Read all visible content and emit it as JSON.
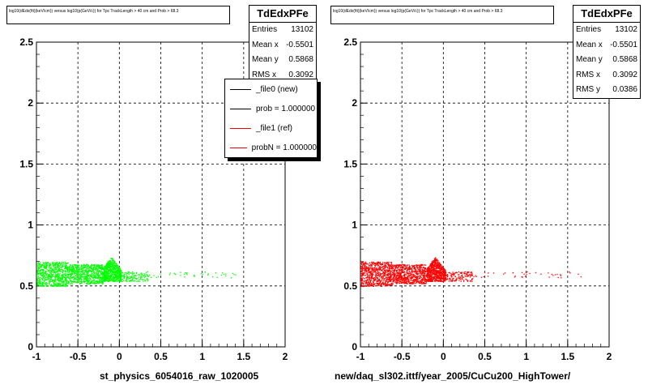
{
  "colors": {
    "left_series": "#00ff00",
    "right_series": "#ff0000",
    "legend_new": "#000000",
    "legend_ref": "#ff0000"
  },
  "chart_data": [
    {
      "type": "scatter",
      "title": "log10(dEdx(fit)(keV/cm)) versus log10(p(GeV/c)) for Tpc TrackLength > 40 cm and Prob > 68.3",
      "xlabel": "st_physics_6054016_raw_1020005",
      "ylabel": "",
      "xlim": [
        -1,
        2
      ],
      "ylim": [
        0,
        2.5
      ],
      "x_ticks": [
        "-1",
        "-0.5",
        "0",
        "0.5",
        "1",
        "1.5",
        "2"
      ],
      "y_ticks": [
        "0",
        "0.5",
        "1",
        "1.5",
        "2",
        "2.5"
      ],
      "grid": true,
      "color": "#00ff00",
      "stats": {
        "name": "TdEdxPFe",
        "rows": [
          {
            "label": "Entries",
            "value": "13102"
          },
          {
            "label": "Mean x",
            "value": "-0.5501"
          },
          {
            "label": "Mean y",
            "value": "0.5868"
          },
          {
            "label": "RMS x",
            "value": "0.3092"
          }
        ]
      },
      "legend": {
        "placement": "top-right",
        "entries": [
          {
            "label": "_file0 (new)",
            "color": "#000000"
          },
          {
            "label": "prob = 1.000000",
            "color": "#000000"
          },
          {
            "label": "_file1 (ref)",
            "color": "#ff0000"
          },
          {
            "label": "probN = 1.000000",
            "color": "#ff0000"
          }
        ]
      },
      "clusters": [
        {
          "x": [
            -1.0,
            -0.62
          ],
          "y": [
            0.5,
            0.7
          ]
        },
        {
          "x": [
            -0.62,
            -0.2
          ],
          "y": [
            0.52,
            0.68
          ]
        },
        {
          "x": [
            -0.2,
            0.02
          ],
          "y": [
            0.54,
            0.74
          ]
        },
        {
          "x": [
            0.02,
            0.35
          ],
          "y": [
            0.54,
            0.62
          ]
        },
        {
          "x": [
            0.35,
            1.4
          ],
          "y": [
            0.57,
            0.62
          ]
        }
      ]
    },
    {
      "type": "scatter",
      "title": "log10(dEdx(fit)(keV/cm)) versus log10(p(GeV/c)) for Tpc TrackLength > 40 cm and Prob > 68.3",
      "xlabel": "new/daq_sl302.ittf/year_2005/CuCu200_HighTower/",
      "ylabel": "",
      "xlim": [
        -1,
        2
      ],
      "ylim": [
        0,
        2.5
      ],
      "x_ticks": [
        "-1",
        "-0.5",
        "0",
        "0.5",
        "1",
        "1.5",
        "2"
      ],
      "y_ticks": [
        "0",
        "0.5",
        "1",
        "1.5",
        "2",
        "2.5"
      ],
      "grid": true,
      "color": "#ff0000",
      "stats": {
        "name": "TdEdxPFe",
        "rows": [
          {
            "label": "Entries",
            "value": "13102"
          },
          {
            "label": "Mean x",
            "value": "-0.5501"
          },
          {
            "label": "Mean y",
            "value": "0.5868"
          },
          {
            "label": "RMS x",
            "value": "0.3092"
          },
          {
            "label": "RMS y",
            "value": "0.0386"
          }
        ]
      },
      "clusters": [
        {
          "x": [
            -1.0,
            -0.62
          ],
          "y": [
            0.5,
            0.7
          ]
        },
        {
          "x": [
            -0.62,
            -0.2
          ],
          "y": [
            0.52,
            0.68
          ]
        },
        {
          "x": [
            -0.2,
            0.02
          ],
          "y": [
            0.54,
            0.74
          ]
        },
        {
          "x": [
            0.02,
            0.35
          ],
          "y": [
            0.54,
            0.62
          ]
        },
        {
          "x": [
            0.35,
            1.7
          ],
          "y": [
            0.57,
            0.62
          ]
        }
      ]
    }
  ]
}
